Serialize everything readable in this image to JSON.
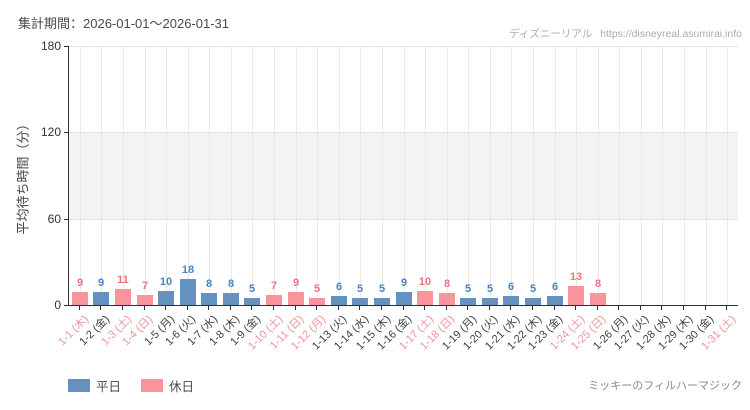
{
  "header": {
    "period_label": "集計期間：2026-01-01～2026-01-31"
  },
  "watermark": {
    "site_name": "ディズニーリアル",
    "site_url": "https://disneyreal.asumirai.info"
  },
  "legend": {
    "weekday_label": "平日",
    "holiday_label": "休日"
  },
  "footer": {
    "attraction_name": "ミッキーのフィルハーマジック"
  },
  "colors": {
    "weekday_bar": "#6591c1",
    "holiday_bar": "#f9949c",
    "weekday_value_label": "#4d84bd",
    "holiday_value_label": "#f2737d",
    "weekday_tick_label": "#3f3f3f",
    "holiday_tick_label": "#f2949a",
    "band_fill": "#f4f4f4",
    "vertical_gridline": "#e9e9e9",
    "horizontal_gridline": "#e3e3e3",
    "axis": "#2f2f2f"
  },
  "chart_data": {
    "type": "bar",
    "title": "",
    "xlabel": "",
    "ylabel": "平均待ち時間（分）",
    "ylim": [
      0,
      180
    ],
    "yticks": [
      0,
      60,
      120,
      180
    ],
    "shaded_band_y": [
      60,
      120
    ],
    "grid": "vertical-per-category",
    "legend_position": "bottom-left",
    "categories": [
      "1-1 (木)",
      "1-2 (金)",
      "1-3 (土)",
      "1-4 (日)",
      "1-5 (月)",
      "1-6 (火)",
      "1-7 (水)",
      "1-8 (木)",
      "1-9 (金)",
      "1-10 (土)",
      "1-11 (日)",
      "1-12 (月)",
      "1-13 (火)",
      "1-14 (水)",
      "1-15 (木)",
      "1-16 (金)",
      "1-17 (土)",
      "1-18 (日)",
      "1-19 (月)",
      "1-20 (火)",
      "1-21 (水)",
      "1-22 (木)",
      "1-23 (金)",
      "1-24 (土)",
      "1-25 (日)",
      "1-26 (月)",
      "1-27 (火)",
      "1-28 (水)",
      "1-29 (木)",
      "1-30 (金)",
      "1-31 (土)"
    ],
    "day_types": [
      "holiday",
      "weekday",
      "holiday",
      "holiday",
      "weekday",
      "weekday",
      "weekday",
      "weekday",
      "weekday",
      "holiday",
      "holiday",
      "holiday",
      "weekday",
      "weekday",
      "weekday",
      "weekday",
      "holiday",
      "holiday",
      "weekday",
      "weekday",
      "weekday",
      "weekday",
      "weekday",
      "holiday",
      "holiday",
      "weekday",
      "weekday",
      "weekday",
      "weekday",
      "weekday",
      "holiday"
    ],
    "series": [
      {
        "name": "平均待ち時間(分)",
        "values": [
          9,
          9,
          11,
          7,
          10,
          18,
          8,
          8,
          5,
          7,
          9,
          5,
          6,
          5,
          5,
          9,
          10,
          8,
          5,
          5,
          6,
          5,
          6,
          13,
          8,
          null,
          null,
          null,
          null,
          null,
          null
        ]
      }
    ]
  }
}
